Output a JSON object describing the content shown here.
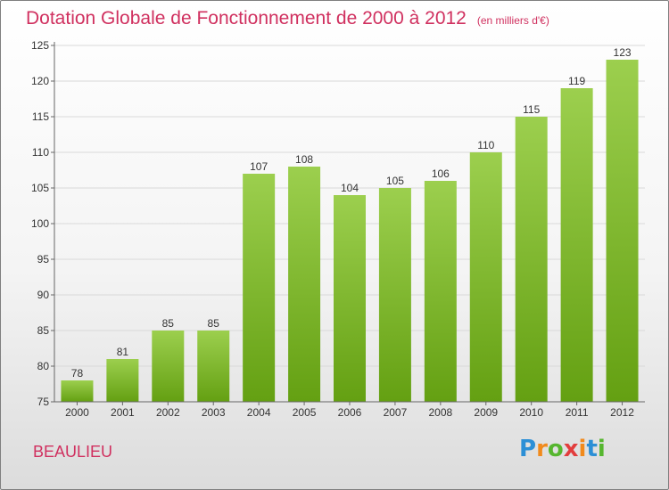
{
  "chart_data": {
    "type": "bar",
    "title": "Dotation Globale de Fonctionnement de 2000 à 2012",
    "subtitle": "(en milliers d'€)",
    "xlabel": "",
    "ylabel": "",
    "categories": [
      "2000",
      "2001",
      "2002",
      "2003",
      "2004",
      "2005",
      "2006",
      "2007",
      "2008",
      "2009",
      "2010",
      "2011",
      "2012"
    ],
    "values": [
      78,
      81,
      85,
      85,
      107,
      108,
      104,
      105,
      106,
      110,
      115,
      119,
      123
    ],
    "value_labels": [
      "78",
      "81",
      "85",
      "85",
      "107",
      "108",
      "104",
      "105",
      "106",
      "110",
      "115",
      "119",
      "123"
    ],
    "ylim": [
      75,
      125
    ],
    "yticks": [
      75,
      80,
      85,
      90,
      95,
      100,
      105,
      110,
      115,
      120,
      125
    ],
    "grid": true,
    "legend": "none",
    "bar_color_top": "#9ccf4e",
    "bar_color_bottom": "#64a012"
  },
  "location": "BEAULIEU",
  "logo": {
    "letters": [
      "P",
      "r",
      "o",
      "x",
      "i",
      "t",
      "i"
    ],
    "colors": [
      "#2c8fd6",
      "#f18a1c",
      "#56b62f",
      "#e23d3d",
      "#f18a1c",
      "#2c8fd6",
      "#56b62f"
    ]
  },
  "colors": {
    "title": "#d0305f",
    "grid": "#d9d9d9",
    "axis": "#666666"
  }
}
